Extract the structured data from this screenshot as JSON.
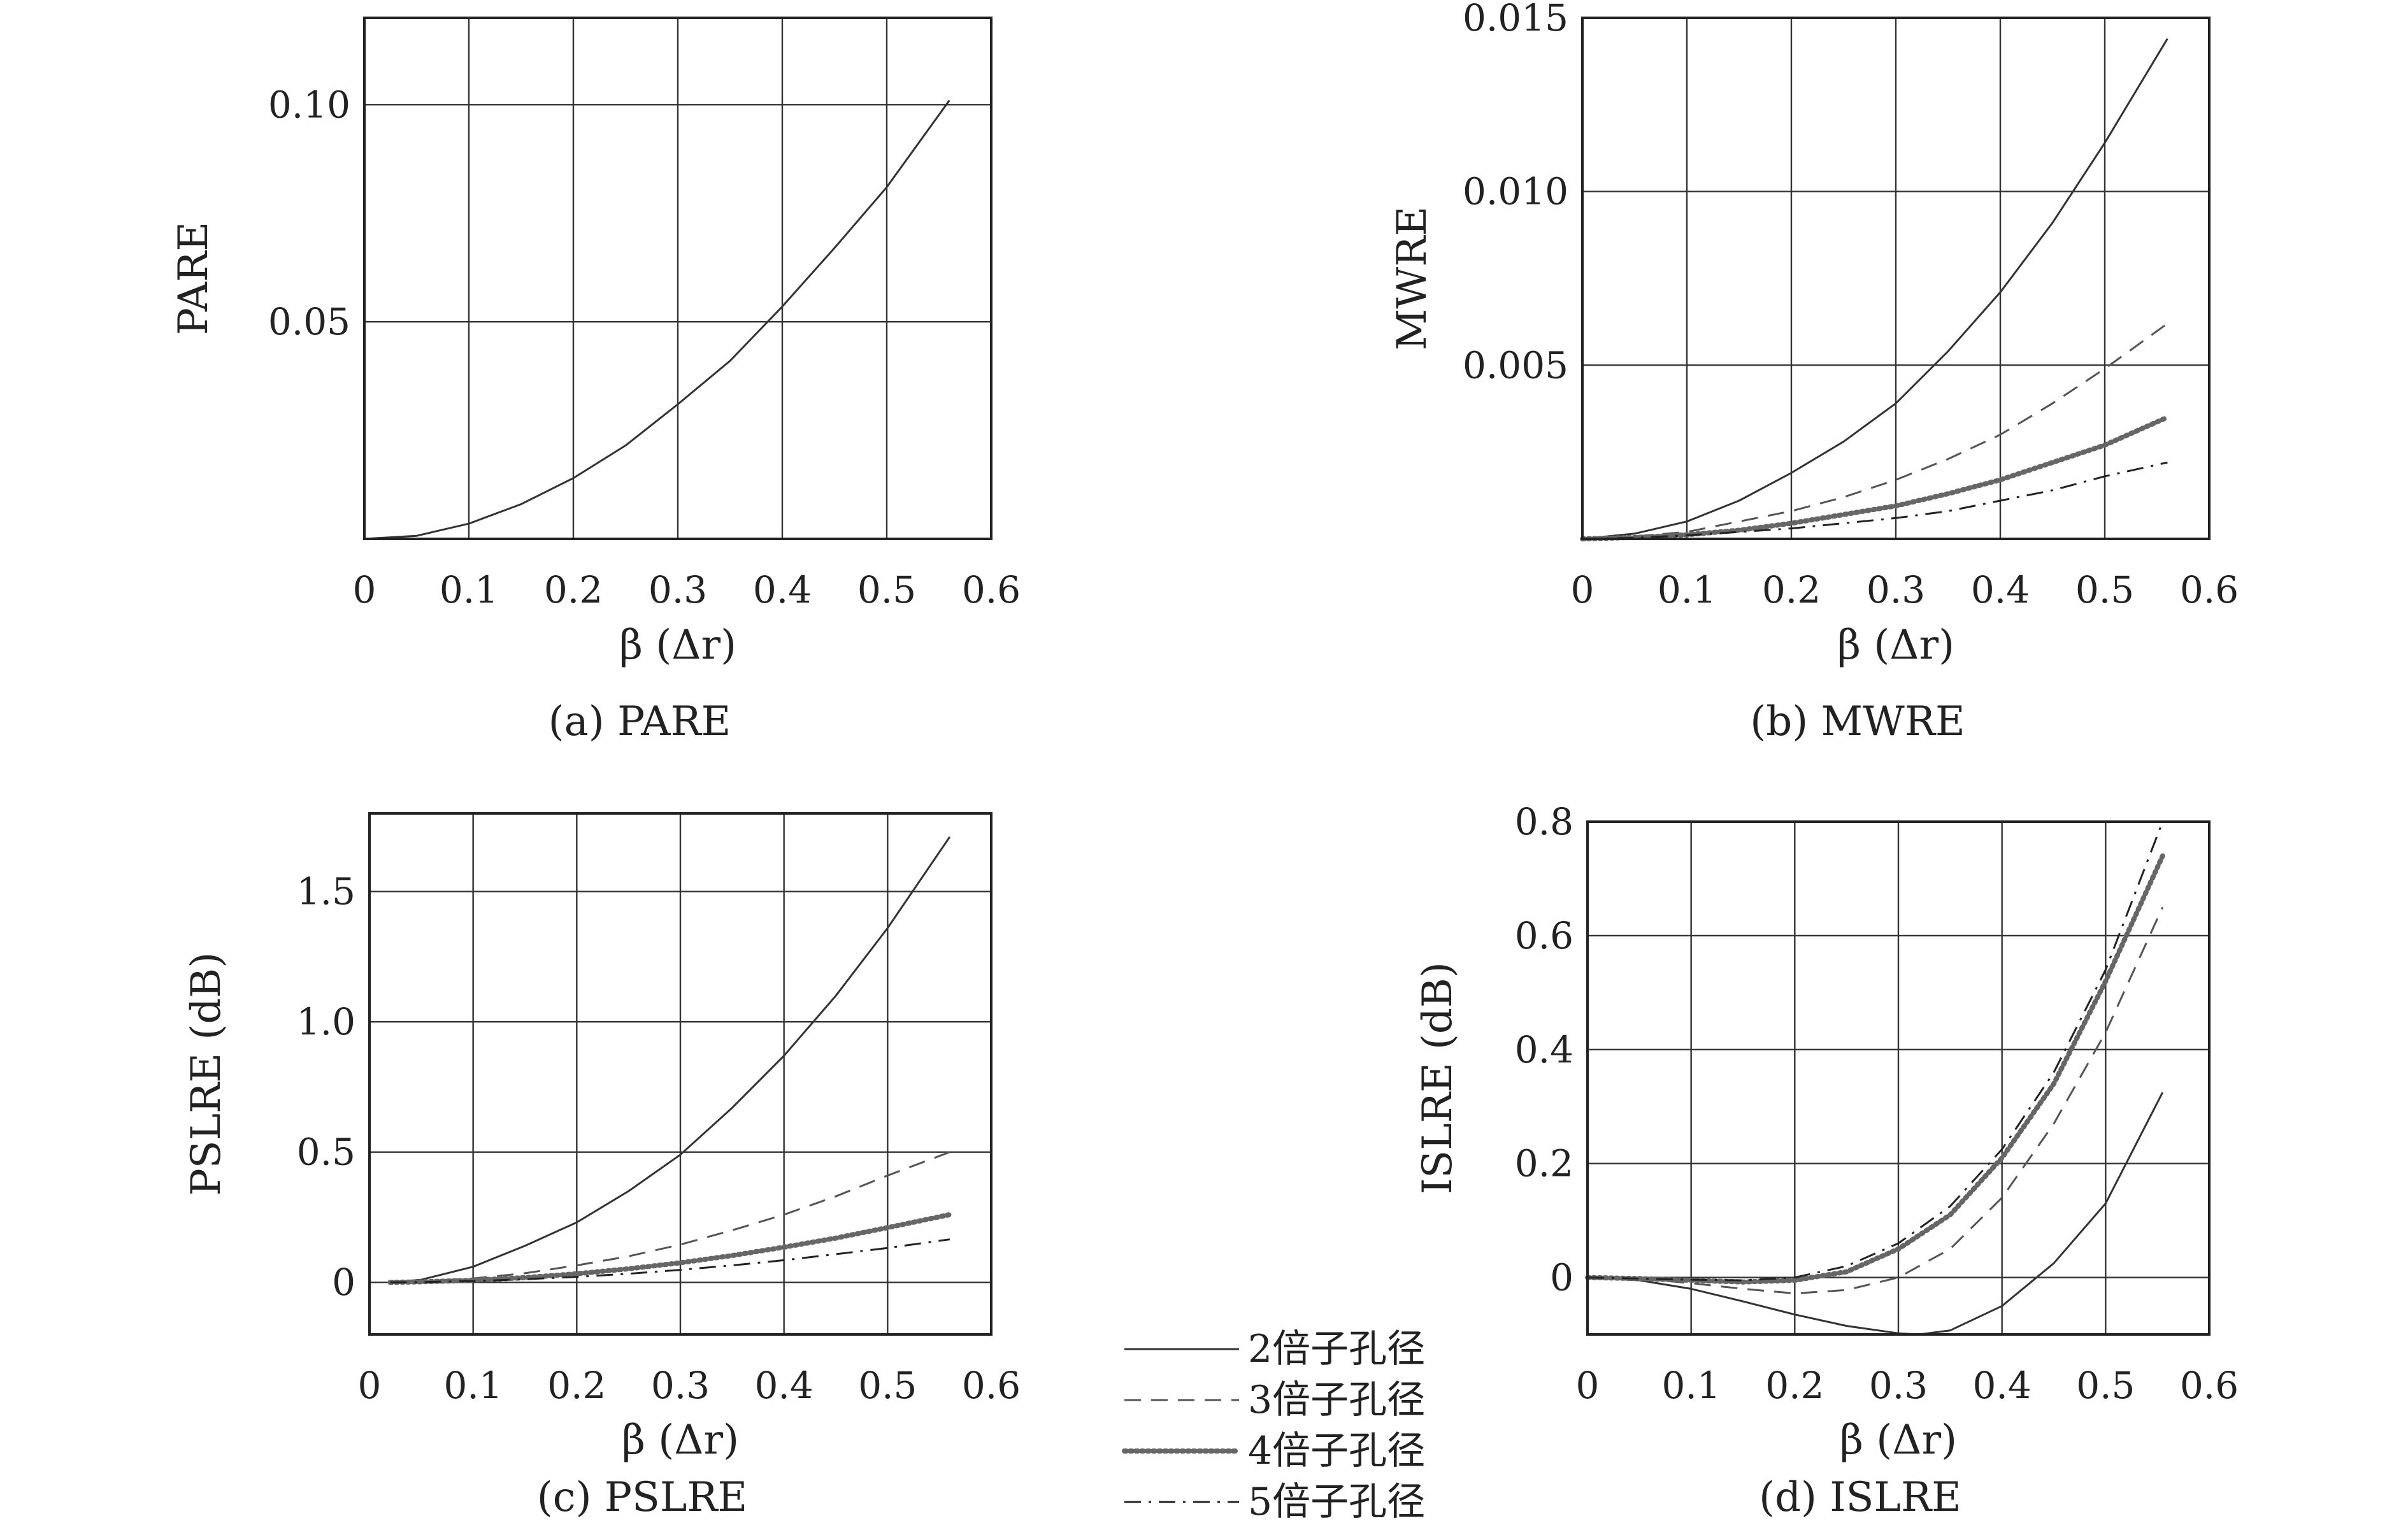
{
  "legend": {
    "entries": [
      {
        "label": "2倍子孔径",
        "style": "solid"
      },
      {
        "label": "3倍子孔径",
        "style": "dashed"
      },
      {
        "label": "4倍子孔径",
        "style": "dotted"
      },
      {
        "label": "5倍子孔径",
        "style": "dashdot"
      }
    ]
  },
  "chart_data": [
    {
      "type": "line",
      "caption": "(a) PARE",
      "xlabel": "β (Δr)",
      "ylabel": "PARE",
      "xlim": [
        0,
        0.6
      ],
      "ylim": [
        0,
        0.12
      ],
      "xticks": [
        "0",
        "0.1",
        "0.2",
        "0.3",
        "0.4",
        "0.5",
        "0.6"
      ],
      "yticks": [
        {
          "value": 0.05,
          "label": "0.05"
        },
        {
          "value": 0.1,
          "label": "0.10"
        }
      ],
      "grid": true,
      "series": [
        {
          "style": "solid",
          "x": [
            0,
            0.05,
            0.1,
            0.15,
            0.2,
            0.25,
            0.3,
            0.35,
            0.4,
            0.45,
            0.5,
            0.56
          ],
          "y": [
            0,
            0.0007,
            0.0035,
            0.008,
            0.014,
            0.0215,
            0.031,
            0.041,
            0.0535,
            0.067,
            0.081,
            0.101
          ]
        }
      ]
    },
    {
      "type": "line",
      "caption": "(b) MWRE",
      "xlabel": "β (Δr)",
      "ylabel": "MWRE",
      "xlim": [
        0,
        0.6
      ],
      "ylim": [
        0,
        0.015
      ],
      "xticks": [
        "0",
        "0.1",
        "0.2",
        "0.3",
        "0.4",
        "0.5",
        "0.6"
      ],
      "yticks": [
        {
          "value": 0.005,
          "label": "0.005"
        },
        {
          "value": 0.01,
          "label": "0.010"
        },
        {
          "value": 0.015,
          "label": "0.015"
        }
      ],
      "grid": true,
      "series": [
        {
          "style": "solid",
          "x": [
            0,
            0.05,
            0.1,
            0.15,
            0.2,
            0.25,
            0.3,
            0.35,
            0.4,
            0.45,
            0.5,
            0.56
          ],
          "y": [
            0,
            0.00015,
            0.0005,
            0.0011,
            0.0019,
            0.0028,
            0.0039,
            0.0054,
            0.0071,
            0.0091,
            0.0114,
            0.0144
          ]
        },
        {
          "style": "dashed",
          "x": [
            0,
            0.05,
            0.1,
            0.15,
            0.2,
            0.25,
            0.3,
            0.35,
            0.4,
            0.45,
            0.5,
            0.56
          ],
          "y": [
            0,
            7e-05,
            0.0002,
            0.0005,
            0.0008,
            0.0012,
            0.0017,
            0.0023,
            0.003,
            0.0039,
            0.0049,
            0.0062
          ]
        },
        {
          "style": "dotted",
          "x": [
            0,
            0.05,
            0.1,
            0.15,
            0.2,
            0.25,
            0.3,
            0.35,
            0.4,
            0.45,
            0.5,
            0.56
          ],
          "y": [
            0,
            4e-05,
            0.00012,
            0.00025,
            0.00045,
            0.0007,
            0.00095,
            0.0013,
            0.0017,
            0.0022,
            0.0027,
            0.0035
          ]
        },
        {
          "style": "dashdot",
          "x": [
            0,
            0.05,
            0.1,
            0.15,
            0.2,
            0.25,
            0.3,
            0.35,
            0.4,
            0.45,
            0.5,
            0.56
          ],
          "y": [
            0,
            3e-05,
            0.0001,
            0.0002,
            0.0003,
            0.00045,
            0.0006,
            0.0008,
            0.0011,
            0.0014,
            0.0018,
            0.0022
          ]
        }
      ]
    },
    {
      "type": "line",
      "caption": "(c) PSLRE",
      "xlabel": "β (Δr)",
      "ylabel": "PSLRE (dB)",
      "xlim": [
        0,
        0.6
      ],
      "ylim": [
        -0.2,
        1.8
      ],
      "xticks": [
        "0",
        "0.1",
        "0.2",
        "0.3",
        "0.4",
        "0.5",
        "0.6"
      ],
      "yticks": [
        {
          "value": 0,
          "label": "0"
        },
        {
          "value": 0.5,
          "label": "0.5"
        },
        {
          "value": 1.0,
          "label": "1.0"
        },
        {
          "value": 1.5,
          "label": "1.5"
        }
      ],
      "grid": true,
      "series": [
        {
          "style": "solid",
          "x": [
            0.02,
            0.05,
            0.1,
            0.15,
            0.2,
            0.25,
            0.3,
            0.35,
            0.4,
            0.45,
            0.5,
            0.56
          ],
          "y": [
            0,
            0.01,
            0.06,
            0.14,
            0.23,
            0.35,
            0.49,
            0.67,
            0.87,
            1.1,
            1.36,
            1.71
          ]
        },
        {
          "style": "dashed",
          "x": [
            0.02,
            0.05,
            0.1,
            0.15,
            0.2,
            0.25,
            0.3,
            0.35,
            0.4,
            0.45,
            0.5,
            0.56
          ],
          "y": [
            0,
            0.004,
            0.015,
            0.035,
            0.065,
            0.1,
            0.145,
            0.2,
            0.26,
            0.33,
            0.41,
            0.5
          ]
        },
        {
          "style": "dotted",
          "x": [
            0.02,
            0.05,
            0.1,
            0.15,
            0.2,
            0.25,
            0.3,
            0.35,
            0.4,
            0.45,
            0.5,
            0.56
          ],
          "y": [
            0,
            0.002,
            0.008,
            0.018,
            0.033,
            0.052,
            0.075,
            0.103,
            0.135,
            0.17,
            0.21,
            0.26
          ]
        },
        {
          "style": "dashdot",
          "x": [
            0.02,
            0.05,
            0.1,
            0.15,
            0.2,
            0.25,
            0.3,
            0.35,
            0.4,
            0.45,
            0.5,
            0.56
          ],
          "y": [
            0,
            0.001,
            0.005,
            0.012,
            0.021,
            0.033,
            0.048,
            0.065,
            0.085,
            0.108,
            0.132,
            0.165
          ]
        }
      ]
    },
    {
      "type": "line",
      "caption": "(d) ISLRE",
      "xlabel": "β (Δr)",
      "ylabel": "ISLRE (dB)",
      "xlim": [
        0,
        0.6
      ],
      "ylim": [
        -0.1,
        0.8
      ],
      "xticks": [
        "0",
        "0.1",
        "0.2",
        "0.3",
        "0.4",
        "0.5",
        "0.6"
      ],
      "yticks": [
        {
          "value": 0,
          "label": "0"
        },
        {
          "value": 0.2,
          "label": "0.2"
        },
        {
          "value": 0.4,
          "label": "0.4"
        },
        {
          "value": 0.6,
          "label": "0.6"
        },
        {
          "value": 0.8,
          "label": "0.8"
        }
      ],
      "grid": true,
      "series": [
        {
          "style": "solid",
          "x": [
            0,
            0.05,
            0.1,
            0.15,
            0.2,
            0.25,
            0.3,
            0.32,
            0.35,
            0.4,
            0.45,
            0.5,
            0.555
          ],
          "y": [
            0,
            -0.005,
            -0.02,
            -0.042,
            -0.065,
            -0.085,
            -0.098,
            -0.1,
            -0.093,
            -0.05,
            0.025,
            0.13,
            0.325
          ]
        },
        {
          "style": "dashed",
          "x": [
            0,
            0.05,
            0.1,
            0.15,
            0.2,
            0.25,
            0.3,
            0.35,
            0.4,
            0.45,
            0.5,
            0.555
          ],
          "y": [
            0,
            -0.002,
            -0.01,
            -0.02,
            -0.028,
            -0.022,
            0.0,
            0.05,
            0.14,
            0.27,
            0.43,
            0.65
          ]
        },
        {
          "style": "dotted",
          "x": [
            0,
            0.05,
            0.1,
            0.15,
            0.2,
            0.25,
            0.3,
            0.35,
            0.4,
            0.45,
            0.5,
            0.555
          ],
          "y": [
            0,
            -0.002,
            -0.005,
            -0.008,
            -0.005,
            0.01,
            0.05,
            0.11,
            0.21,
            0.34,
            0.52,
            0.74
          ]
        },
        {
          "style": "dashdot",
          "x": [
            0,
            0.05,
            0.1,
            0.15,
            0.2,
            0.25,
            0.3,
            0.35,
            0.4,
            0.45,
            0.5,
            0.555
          ],
          "y": [
            0,
            -0.002,
            -0.004,
            -0.005,
            0.0,
            0.02,
            0.06,
            0.125,
            0.225,
            0.36,
            0.54,
            0.8
          ]
        }
      ]
    }
  ]
}
